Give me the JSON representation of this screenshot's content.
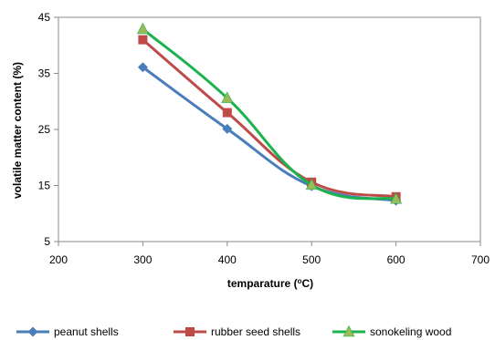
{
  "chart_data": {
    "type": "line",
    "xlabel": "temparature (",
    "xlabel_sup": "o",
    "xlabel_tail": "C)",
    "ylabel": "volatile matter content  (%)",
    "xlim": [
      200,
      700
    ],
    "ylim": [
      5,
      45
    ],
    "xticks": [
      200,
      300,
      400,
      500,
      600,
      700
    ],
    "yticks": [
      5,
      15,
      25,
      35,
      45
    ],
    "grid": false,
    "legend_position": "bottom",
    "smooth": true,
    "series": [
      {
        "name": "peanut shells",
        "color": "#4a7ebb",
        "marker": "diamond",
        "x": [
          300,
          400,
          500,
          600
        ],
        "y": [
          36.1,
          25.1,
          14.9,
          12.3
        ]
      },
      {
        "name": "rubber  seed shells",
        "color": "#be4b48",
        "marker": "square",
        "x": [
          300,
          400,
          500,
          600
        ],
        "y": [
          41.0,
          28.0,
          15.6,
          13.0
        ]
      },
      {
        "name": "sonokeling wood",
        "color": "#1cb34e",
        "marker": "triangle",
        "marker_color": "#9bbb59",
        "x": [
          300,
          400,
          500,
          600
        ],
        "y": [
          42.9,
          30.6,
          15.1,
          12.6
        ]
      }
    ]
  }
}
